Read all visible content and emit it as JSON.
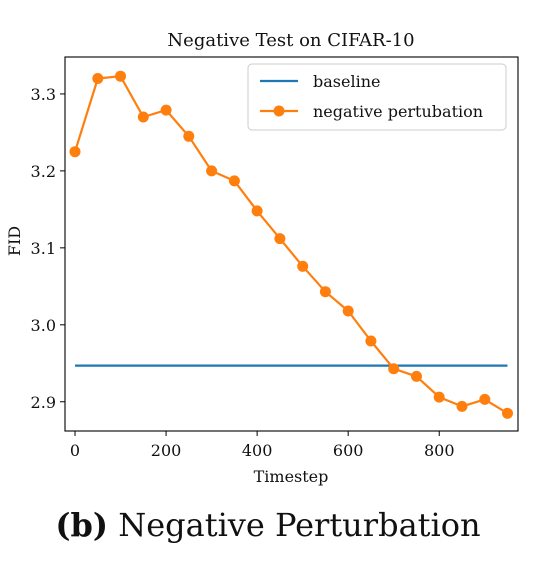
{
  "chart_data": {
    "type": "line",
    "title": "Negative Test on CIFAR-10",
    "xlabel": "Timestep",
    "ylabel": "FID",
    "xlim": [
      -22,
      973
    ],
    "ylim": [
      2.862,
      3.348
    ],
    "xticks": [
      0,
      200,
      400,
      600,
      800
    ],
    "yticks": [
      2.9,
      3.0,
      3.1,
      3.2,
      3.3
    ],
    "xtick_labels": [
      "0",
      "200",
      "400",
      "600",
      "800"
    ],
    "ytick_labels": [
      "2.9",
      "3.0",
      "3.1",
      "3.2",
      "3.3"
    ],
    "grid": false,
    "legend_position": "top-right",
    "series": [
      {
        "name": "baseline",
        "color": "#1f77b4",
        "marker": "none",
        "x": [
          0,
          950
        ],
        "y": [
          2.947,
          2.947
        ]
      },
      {
        "name": "negative pertubation",
        "color": "#ff7f0e",
        "marker": "circle",
        "x": [
          0,
          50,
          100,
          150,
          200,
          250,
          300,
          350,
          400,
          450,
          500,
          550,
          600,
          650,
          700,
          750,
          800,
          850,
          900,
          950
        ],
        "y": [
          3.225,
          3.32,
          3.323,
          3.27,
          3.279,
          3.245,
          3.2,
          3.187,
          3.148,
          3.112,
          3.076,
          3.043,
          3.018,
          2.979,
          2.943,
          2.933,
          2.906,
          2.894,
          2.903,
          2.885
        ]
      }
    ]
  },
  "caption": {
    "label": "(b)",
    "text": "Negative Perturbation"
  }
}
